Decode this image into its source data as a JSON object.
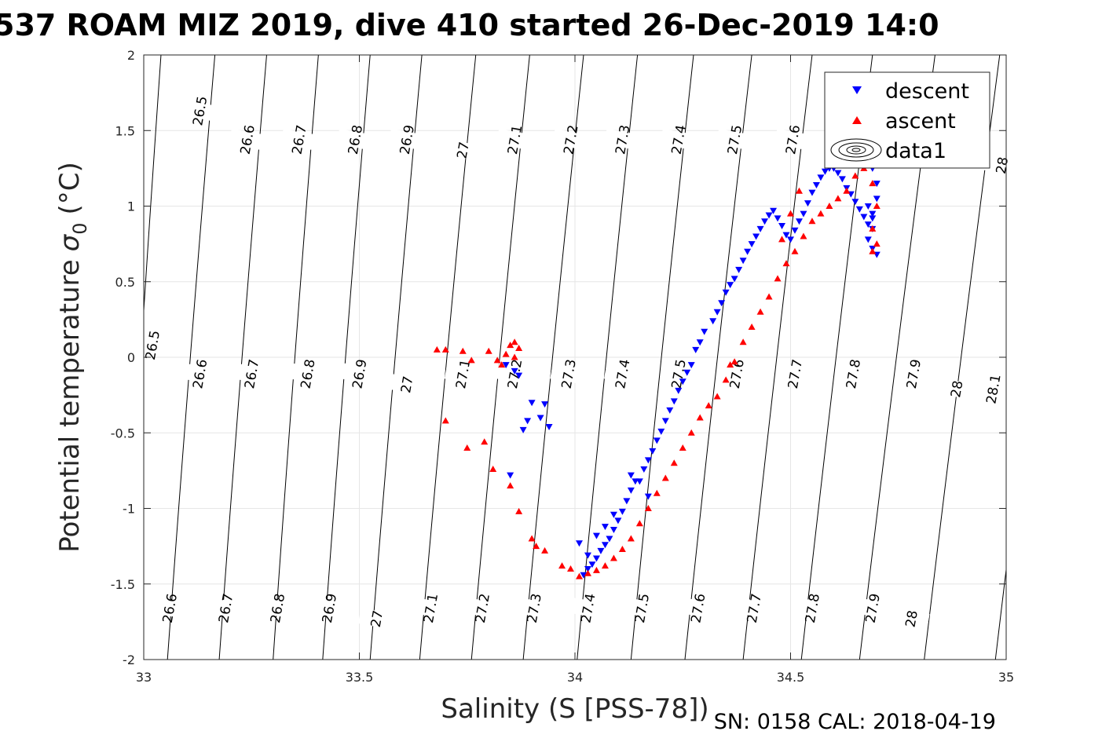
{
  "chart_data": {
    "type": "scatter",
    "title": "537 ROAM MIZ 2019, dive 410 started 26-Dec-2019 14:0",
    "xlabel": "Salinity (S [PSS-78])",
    "ylabel": "Potential temperature",
    "ylabel_symbol": "σ",
    "ylabel_subscript": "0",
    "ylabel_unit": "(°C)",
    "footer": "SN: 0158  CAL: 2018-04-19",
    "xlim": [
      33,
      35
    ],
    "ylim": [
      -2,
      2
    ],
    "x_ticks": [
      "33",
      "33.5",
      "34",
      "34.5",
      "35"
    ],
    "y_ticks": [
      "-2",
      "-1.5",
      "-1",
      "-0.5",
      "0",
      "0.5",
      "1",
      "1.5",
      "2"
    ],
    "grid": true,
    "legend": {
      "placement": "top-right",
      "entries": [
        "descent",
        "ascent",
        "data1"
      ]
    },
    "contours": {
      "levels": [
        "26.5",
        "26.6",
        "26.7",
        "26.8",
        "26.9",
        "27",
        "27.1",
        "27.2",
        "27.3",
        "27.4",
        "27.5",
        "27.6",
        "27.7",
        "27.8",
        "27.9",
        "28",
        "28.1"
      ],
      "bottom_x": [
        32.95,
        33.055,
        33.175,
        33.3,
        33.415,
        33.525,
        33.64,
        33.76,
        33.88,
        34.005,
        34.13,
        34.255,
        34.39,
        34.525,
        34.66,
        34.81,
        34.975
      ],
      "top_x": [
        33.04,
        33.165,
        33.285,
        33.405,
        33.525,
        33.645,
        33.77,
        33.895,
        34.02,
        34.145,
        34.275,
        34.41,
        34.55,
        34.69,
        34.835,
        34.985,
        35.15
      ],
      "labels": [
        {
          "text": "26.5",
          "x": 33.02,
          "y": 0.08
        },
        {
          "text": "26.5",
          "x": 33.13,
          "y": 1.63
        },
        {
          "text": "26.6",
          "x": 33.13,
          "y": -0.11
        },
        {
          "text": "26.6",
          "x": 33.24,
          "y": 1.44
        },
        {
          "text": "26.6",
          "x": 33.06,
          "y": -1.66
        },
        {
          "text": "26.7",
          "x": 33.25,
          "y": -0.11
        },
        {
          "text": "26.7",
          "x": 33.36,
          "y": 1.44
        },
        {
          "text": "26.7",
          "x": 33.19,
          "y": -1.66
        },
        {
          "text": "26.8",
          "x": 33.38,
          "y": -0.11
        },
        {
          "text": "26.8",
          "x": 33.49,
          "y": 1.44
        },
        {
          "text": "26.8",
          "x": 33.31,
          "y": -1.66
        },
        {
          "text": "26.9",
          "x": 33.5,
          "y": -0.11
        },
        {
          "text": "26.9",
          "x": 33.61,
          "y": 1.44
        },
        {
          "text": "26.9",
          "x": 33.43,
          "y": -1.66
        },
        {
          "text": "27",
          "x": 33.61,
          "y": -0.18
        },
        {
          "text": "27",
          "x": 33.74,
          "y": 1.37
        },
        {
          "text": "27",
          "x": 33.54,
          "y": -1.73
        },
        {
          "text": "27.1",
          "x": 33.74,
          "y": -0.11
        },
        {
          "text": "27.1",
          "x": 33.86,
          "y": 1.44
        },
        {
          "text": "27.1",
          "x": 33.665,
          "y": -1.66
        },
        {
          "text": "27.2",
          "x": 33.86,
          "y": -0.11
        },
        {
          "text": "27.2",
          "x": 33.99,
          "y": 1.44
        },
        {
          "text": "27.2",
          "x": 33.785,
          "y": -1.66
        },
        {
          "text": "27.3",
          "x": 33.985,
          "y": -0.11
        },
        {
          "text": "27.3",
          "x": 34.11,
          "y": 1.44
        },
        {
          "text": "27.3",
          "x": 33.905,
          "y": -1.66
        },
        {
          "text": "27.4",
          "x": 34.11,
          "y": -0.11
        },
        {
          "text": "27.4",
          "x": 34.24,
          "y": 1.44
        },
        {
          "text": "27.4",
          "x": 34.03,
          "y": -1.66
        },
        {
          "text": "27.5",
          "x": 34.24,
          "y": -0.11
        },
        {
          "text": "27.5",
          "x": 34.37,
          "y": 1.44
        },
        {
          "text": "27.5",
          "x": 34.155,
          "y": -1.66
        },
        {
          "text": "27.6",
          "x": 34.375,
          "y": -0.11
        },
        {
          "text": "27.6",
          "x": 34.505,
          "y": 1.44
        },
        {
          "text": "27.6",
          "x": 34.285,
          "y": -1.66
        },
        {
          "text": "27.7",
          "x": 34.51,
          "y": -0.11
        },
        {
          "text": "27.7",
          "x": 34.415,
          "y": -1.66
        },
        {
          "text": "27.8",
          "x": 34.645,
          "y": -0.11
        },
        {
          "text": "27.8",
          "x": 34.55,
          "y": -1.66
        },
        {
          "text": "27.9",
          "x": 34.785,
          "y": -0.11
        },
        {
          "text": "27.9",
          "x": 34.69,
          "y": -1.66
        },
        {
          "text": "28",
          "x": 34.885,
          "y": -0.21
        },
        {
          "text": "28",
          "x": 34.78,
          "y": -1.73
        },
        {
          "text": "28",
          "x": 34.99,
          "y": 1.27
        },
        {
          "text": "28.1",
          "x": 34.97,
          "y": -0.21
        }
      ]
    },
    "series": [
      {
        "name": "descent",
        "marker": "triangle-down",
        "color": "#0000ff",
        "x": [
          34.02,
          34.03,
          34.04,
          34.05,
          34.06,
          34.07,
          34.08,
          34.09,
          34.1,
          34.11,
          34.12,
          34.13,
          34.14,
          34.16,
          34.17,
          34.18,
          34.19,
          34.2,
          34.21,
          34.22,
          34.23,
          34.24,
          34.25,
          34.26,
          34.27,
          34.28,
          34.29,
          34.3,
          34.32,
          34.33,
          34.34,
          34.35,
          34.36,
          34.37,
          34.38,
          34.39,
          34.4,
          34.41,
          34.42,
          34.43,
          34.44,
          34.45,
          34.46,
          34.47,
          34.48,
          34.49,
          34.5,
          34.51,
          34.52,
          34.53,
          34.54,
          34.55,
          34.56,
          34.57,
          34.58,
          34.59,
          34.6,
          34.61,
          34.62,
          34.63,
          34.64,
          34.65,
          34.66,
          34.67,
          34.68,
          34.69,
          34.7,
          34.7,
          34.69,
          34.69,
          34.68,
          34.69,
          34.7,
          34.69,
          34.68,
          33.84,
          33.85,
          33.86,
          33.88,
          33.9,
          33.92,
          33.94,
          33.87,
          33.89,
          33.93,
          34.01,
          34.03,
          34.05,
          34.07,
          34.09,
          34.13,
          34.15,
          34.17
        ],
        "y": [
          -1.44,
          -1.4,
          -1.37,
          -1.33,
          -1.28,
          -1.24,
          -1.2,
          -1.14,
          -1.08,
          -1.02,
          -0.95,
          -0.88,
          -0.82,
          -0.74,
          -0.68,
          -0.62,
          -0.55,
          -0.49,
          -0.42,
          -0.35,
          -0.29,
          -0.22,
          -0.16,
          -0.1,
          -0.05,
          0.05,
          0.1,
          0.17,
          0.24,
          0.3,
          0.36,
          0.43,
          0.48,
          0.52,
          0.58,
          0.64,
          0.7,
          0.75,
          0.8,
          0.85,
          0.9,
          0.94,
          0.97,
          0.92,
          0.87,
          0.81,
          0.78,
          0.84,
          0.9,
          0.95,
          1.02,
          1.09,
          1.14,
          1.19,
          1.23,
          1.25,
          1.25,
          1.22,
          1.18,
          1.12,
          1.08,
          1.03,
          0.98,
          0.93,
          0.88,
          1.25,
          1.15,
          1.05,
          0.95,
          0.85,
          0.78,
          0.72,
          0.68,
          0.92,
          1.0,
          -0.05,
          -0.78,
          -0.09,
          -0.48,
          -0.3,
          -0.4,
          -0.46,
          -0.12,
          -0.42,
          -0.31,
          -1.23,
          -1.31,
          -1.18,
          -1.12,
          -1.04,
          -0.78,
          -0.82,
          -0.92
        ]
      },
      {
        "name": "ascent",
        "marker": "triangle-up",
        "color": "#ff0000",
        "x": [
          34.01,
          34.03,
          34.05,
          34.07,
          34.09,
          34.11,
          34.13,
          34.15,
          34.17,
          34.19,
          34.21,
          34.23,
          34.25,
          34.27,
          34.29,
          34.31,
          34.33,
          34.35,
          34.37,
          34.39,
          34.41,
          34.43,
          34.45,
          34.47,
          34.49,
          34.51,
          34.53,
          34.55,
          34.57,
          34.59,
          34.61,
          34.63,
          34.65,
          34.67,
          34.69,
          34.7,
          34.69,
          34.7,
          34.69,
          33.68,
          33.7,
          33.74,
          33.76,
          33.8,
          33.82,
          33.84,
          33.85,
          33.86,
          33.87,
          33.83,
          33.86,
          33.7,
          33.75,
          33.79,
          33.81,
          33.85,
          33.87,
          33.9,
          33.91,
          33.93,
          33.97,
          33.99,
          34.36,
          34.48,
          34.5,
          34.52
        ],
        "y": [
          -1.45,
          -1.43,
          -1.41,
          -1.38,
          -1.33,
          -1.27,
          -1.2,
          -1.1,
          -1.0,
          -0.9,
          -0.8,
          -0.7,
          -0.6,
          -0.5,
          -0.4,
          -0.32,
          -0.26,
          -0.15,
          -0.03,
          0.1,
          0.2,
          0.3,
          0.4,
          0.52,
          0.62,
          0.7,
          0.8,
          0.9,
          0.95,
          1.0,
          1.05,
          1.1,
          1.2,
          1.25,
          1.15,
          1.0,
          0.85,
          0.75,
          0.7,
          0.05,
          0.05,
          0.04,
          -0.02,
          0.04,
          -0.02,
          0.02,
          0.08,
          0.1,
          0.06,
          -0.05,
          0.0,
          -0.42,
          -0.6,
          -0.56,
          -0.74,
          -0.85,
          -1.02,
          -1.2,
          -1.25,
          -1.28,
          -1.38,
          -1.4,
          -0.05,
          0.78,
          0.95,
          1.1
        ]
      }
    ]
  }
}
